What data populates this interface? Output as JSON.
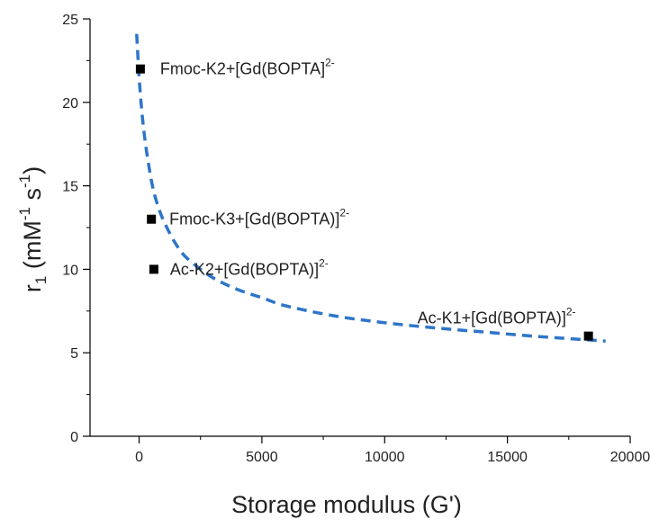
{
  "chart_data": {
    "type": "scatter",
    "xlabel": "Storage modulus (G')",
    "ylabel": {
      "main": "r",
      "sub": "1",
      "rest1": " (mM",
      "sup1": "-1",
      "rest2": " s",
      "sup2": "-1",
      "rest3": ")"
    },
    "xlim": [
      -2000,
      20000
    ],
    "ylim": [
      0,
      25
    ],
    "x_ticks": [
      0,
      5000,
      10000,
      15000,
      20000
    ],
    "y_ticks": [
      0,
      5,
      10,
      15,
      20,
      25
    ],
    "x_tick_labels": [
      "0",
      "5000",
      "10000",
      "15000",
      "20000"
    ],
    "y_tick_labels": [
      "0",
      "5",
      "10",
      "15",
      "20",
      "25"
    ],
    "grid": false,
    "points": [
      {
        "x": 50,
        "y": 22,
        "label": "Fmoc-K2+[Gd(BOPTA]",
        "label_sup": "2-"
      },
      {
        "x": 500,
        "y": 13,
        "label": "Fmoc-K3+[Gd(BOPTA)]",
        "label_sup": "2-"
      },
      {
        "x": 600,
        "y": 10,
        "label": "Ac-K2+[Gd(BOPTA)]",
        "label_sup": "2-"
      },
      {
        "x": 18300,
        "y": 6,
        "label": "Ac-K1+[Gd(BOPTA)]",
        "label_sup": "2-"
      }
    ],
    "fit_curve": {
      "style": "dashed",
      "color": "#2E75C8",
      "x": [
        -100,
        0,
        100,
        200,
        300,
        500,
        700,
        1000,
        1500,
        2000,
        3000,
        4000,
        5000,
        6000,
        8000,
        10000,
        12000,
        14000,
        16000,
        18000,
        19000
      ],
      "y": [
        24.1,
        21.5,
        19.6,
        18.2,
        17.1,
        15.3,
        14.1,
        12.9,
        11.5,
        10.6,
        9.5,
        8.8,
        8.3,
        7.8,
        7.2,
        6.8,
        6.5,
        6.25,
        6.0,
        5.8,
        5.7
      ]
    },
    "marker_color": "#000000"
  }
}
